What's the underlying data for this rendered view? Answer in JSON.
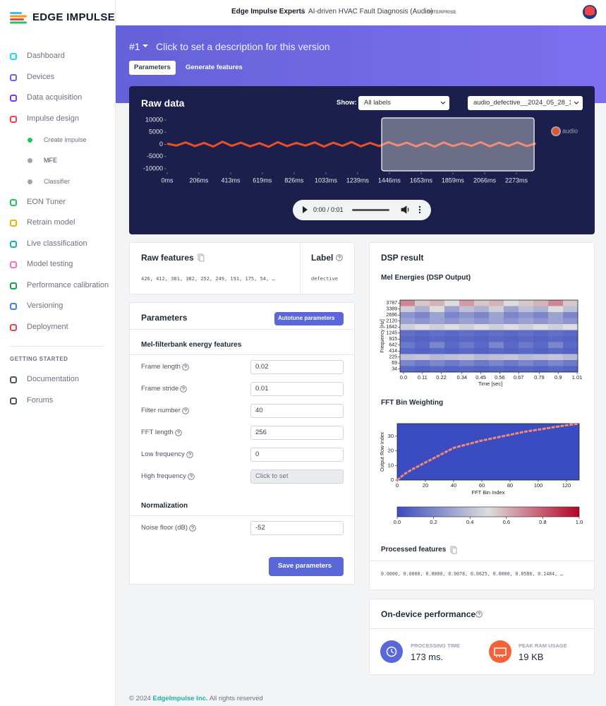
{
  "sidebar": {
    "logo": "EDGE IMPULSE",
    "nav": [
      {
        "label": "Dashboard"
      },
      {
        "label": "Devices"
      },
      {
        "label": "Data acquisition"
      },
      {
        "label": "Impulse design",
        "children": [
          "Create impulse",
          "MFE",
          "Classifier"
        ]
      },
      {
        "label": "EON Tuner"
      },
      {
        "label": "Retrain model"
      },
      {
        "label": "Live classification"
      },
      {
        "label": "Model testing"
      },
      {
        "label": "Performance calibration"
      },
      {
        "label": "Versioning"
      },
      {
        "label": "Deployment"
      }
    ],
    "section": "GETTING STARTED",
    "help": [
      "Documentation",
      "Forums"
    ]
  },
  "header": {
    "org": "Edge Impulse Experts",
    "separator": "/",
    "project": "AI-driven HVAC Fault Diagnosis (Audio)",
    "badge": "ENTERPRISE"
  },
  "banner": {
    "version": "#1",
    "description": "Click to set a description for this version",
    "tabs": [
      "Parameters",
      "Generate features"
    ]
  },
  "raw_data": {
    "title": "Raw data",
    "show_label": "Show:",
    "label_filter": "All labels",
    "sample": "audio_defective__2024_05_28_1",
    "player_time": "0:00 / 0:01"
  },
  "raw_features": {
    "title": "Raw features",
    "values": "426, 412, 381, 382, 252, 249, 191, 175, 54, …",
    "label_title": "Label",
    "label": "defective"
  },
  "parameters": {
    "title": "Parameters",
    "autotune": "Autotune parameters",
    "section": "Mel-filterbank energy features",
    "fields": [
      {
        "label": "Frame length",
        "value": 0.02
      },
      {
        "label": "Frame stride",
        "value": 0.01
      },
      {
        "label": "Filter number",
        "value": 40
      },
      {
        "label": "FFT length",
        "value": 256
      },
      {
        "label": "Low frequency",
        "value": 0
      },
      {
        "label": "High frequency",
        "value": "Click to set"
      }
    ],
    "normalization": {
      "title": "Normalization",
      "fields": [
        {
          "label": "Noise floor (dB)",
          "value": -52
        }
      ]
    },
    "save": "Save parameters"
  },
  "dsp": {
    "title": "DSP result",
    "processed_title": "Processed features",
    "processed": "0.0000, 0.0000, 0.0000, 0.0078, 0.0625, 0.0000, 0.0586, 0.1484, …"
  },
  "performance": {
    "title": "On-device performance",
    "metrics": [
      {
        "label": "PROCESSING TIME",
        "value": "173 ms."
      },
      {
        "label": "PEAK RAM USAGE",
        "value": "19 KB"
      }
    ]
  },
  "footer": {
    "prefix": "© 2024",
    "link": "EdgeImpulse Inc.",
    "suffix": "All rights reserved"
  },
  "chart_data": [
    {
      "type": "line",
      "x": [
        0,
        60,
        120,
        180,
        240,
        300,
        360,
        420,
        480,
        540,
        600,
        660,
        720,
        780,
        840,
        900,
        960,
        1020,
        1080,
        1140,
        1200,
        1260,
        1320,
        1380,
        1440,
        1500,
        1560,
        1620,
        1680,
        1740,
        1800,
        1860,
        1920,
        1980,
        2040,
        2100,
        2160,
        2220,
        2280,
        2340,
        2400
      ],
      "series": [
        {
          "name": "audio",
          "color": "#e8502a",
          "values": [
            300,
            -500,
            800,
            -700,
            600,
            -900,
            1100,
            -600,
            700,
            -800,
            500,
            -1000,
            900,
            -700,
            600,
            -500,
            800,
            -900,
            700,
            -600,
            1000,
            -800,
            600,
            -700,
            900,
            -500,
            700,
            -800,
            600,
            -900,
            800,
            -700,
            500,
            -600,
            900,
            -800,
            700,
            -600,
            800,
            -700,
            400
          ]
        }
      ],
      "xlim": [
        0,
        2461
      ],
      "ylim": [
        -10000,
        10000
      ],
      "yticks": [
        10000,
        5000,
        0,
        -5000,
        -10000
      ],
      "xticks": [
        {
          "value": 0,
          "label": "0ms"
        },
        {
          "value": 206,
          "label": "206ms"
        },
        {
          "value": 413,
          "label": "413ms"
        },
        {
          "value": 619,
          "label": "619ms"
        },
        {
          "value": 826,
          "label": "826ms"
        },
        {
          "value": 1033,
          "label": "1033ms"
        },
        {
          "value": 1239,
          "label": "1239ms"
        },
        {
          "value": 1446,
          "label": "1446ms"
        },
        {
          "value": 1653,
          "label": "1653ms"
        },
        {
          "value": 1859,
          "label": "1859ms"
        },
        {
          "value": 2066,
          "label": "2066ms"
        },
        {
          "value": 2273,
          "label": "2273ms"
        }
      ],
      "window": {
        "start": 1396,
        "end": 2388
      }
    },
    {
      "type": "heatmap",
      "title": "Mel Energies (DSP Output)",
      "xlabel": "Time [sec]",
      "ylabel": "Frequency [Hz]",
      "y": [
        3787,
        3389,
        2696,
        2120,
        1642,
        1245,
        915,
        642,
        414,
        225,
        69,
        34
      ],
      "xlim": [
        0,
        1.01
      ],
      "xticks": [
        {
          "value": 0,
          "label": "0.0"
        },
        0.11,
        0.22,
        0.34,
        0.45,
        0.56,
        0.67,
        0.79,
        0.9,
        1.01
      ],
      "colormap": [
        "#3b4cc0",
        "#dddddd",
        "#b40426"
      ],
      "z": [
        [
          0.7,
          0.55,
          0.6,
          0.5,
          0.65,
          0.55,
          0.6,
          0.5,
          0.55,
          0.6,
          0.7,
          0.55
        ],
        [
          0.45,
          0.35,
          0.5,
          0.3,
          0.4,
          0.35,
          0.45,
          0.3,
          0.4,
          0.35,
          0.5,
          0.4
        ],
        [
          0.25,
          0.2,
          0.3,
          0.2,
          0.25,
          0.2,
          0.3,
          0.2,
          0.25,
          0.2,
          0.3,
          0.2
        ],
        [
          0.3,
          0.25,
          0.3,
          0.25,
          0.3,
          0.25,
          0.3,
          0.25,
          0.3,
          0.25,
          0.3,
          0.25
        ],
        [
          0.45,
          0.5,
          0.45,
          0.5,
          0.45,
          0.5,
          0.45,
          0.5,
          0.45,
          0.5,
          0.45,
          0.5
        ],
        [
          0.12,
          0.1,
          0.12,
          0.1,
          0.12,
          0.1,
          0.12,
          0.1,
          0.12,
          0.1,
          0.12,
          0.1
        ],
        [
          0.1,
          0.08,
          0.1,
          0.08,
          0.1,
          0.08,
          0.1,
          0.08,
          0.1,
          0.08,
          0.1,
          0.08
        ],
        [
          0.15,
          0.1,
          0.2,
          0.1,
          0.15,
          0.1,
          0.2,
          0.1,
          0.15,
          0.1,
          0.2,
          0.1
        ],
        [
          0.1,
          0.08,
          0.1,
          0.08,
          0.1,
          0.08,
          0.1,
          0.08,
          0.1,
          0.08,
          0.1,
          0.08
        ],
        [
          0.4,
          0.42,
          0.38,
          0.4,
          0.42,
          0.38,
          0.4,
          0.42,
          0.38,
          0.4,
          0.42,
          0.38
        ],
        [
          0.2,
          0.15,
          0.2,
          0.15,
          0.2,
          0.15,
          0.2,
          0.15,
          0.2,
          0.15,
          0.2,
          0.15
        ],
        [
          0.1,
          0.08,
          0.1,
          0.08,
          0.1,
          0.08,
          0.1,
          0.08,
          0.1,
          0.08,
          0.1,
          0.08
        ]
      ]
    },
    {
      "type": "line",
      "title": "FFT Bin Weighting",
      "xlabel": "FFT Bin Index",
      "ylabel": "Output Row Index",
      "x": [
        0,
        5,
        10,
        20,
        30,
        40,
        50,
        60,
        70,
        80,
        90,
        100,
        110,
        120,
        128
      ],
      "values": [
        0,
        4,
        7,
        12,
        17,
        22,
        24.5,
        27,
        29,
        31,
        33,
        34.5,
        36,
        37.5,
        38.5
      ],
      "color": "#f08a76",
      "background": "#3b4cc0",
      "xlim": [
        0,
        129
      ],
      "ylim": [
        0,
        38.6
      ],
      "xticks": [
        0,
        20,
        40,
        60,
        80,
        100,
        120
      ],
      "yticks": [
        0,
        10,
        20,
        30
      ],
      "colorbar": {
        "lim": [
          0,
          1
        ],
        "colormap": [
          "#3b4cc0",
          "#dddddd",
          "#b40426"
        ],
        "ticks": [
          {
            "value": 0,
            "label": "0.0"
          },
          0.2,
          0.4,
          0.6,
          0.8,
          {
            "value": 1,
            "label": "1.0"
          }
        ]
      }
    }
  ]
}
